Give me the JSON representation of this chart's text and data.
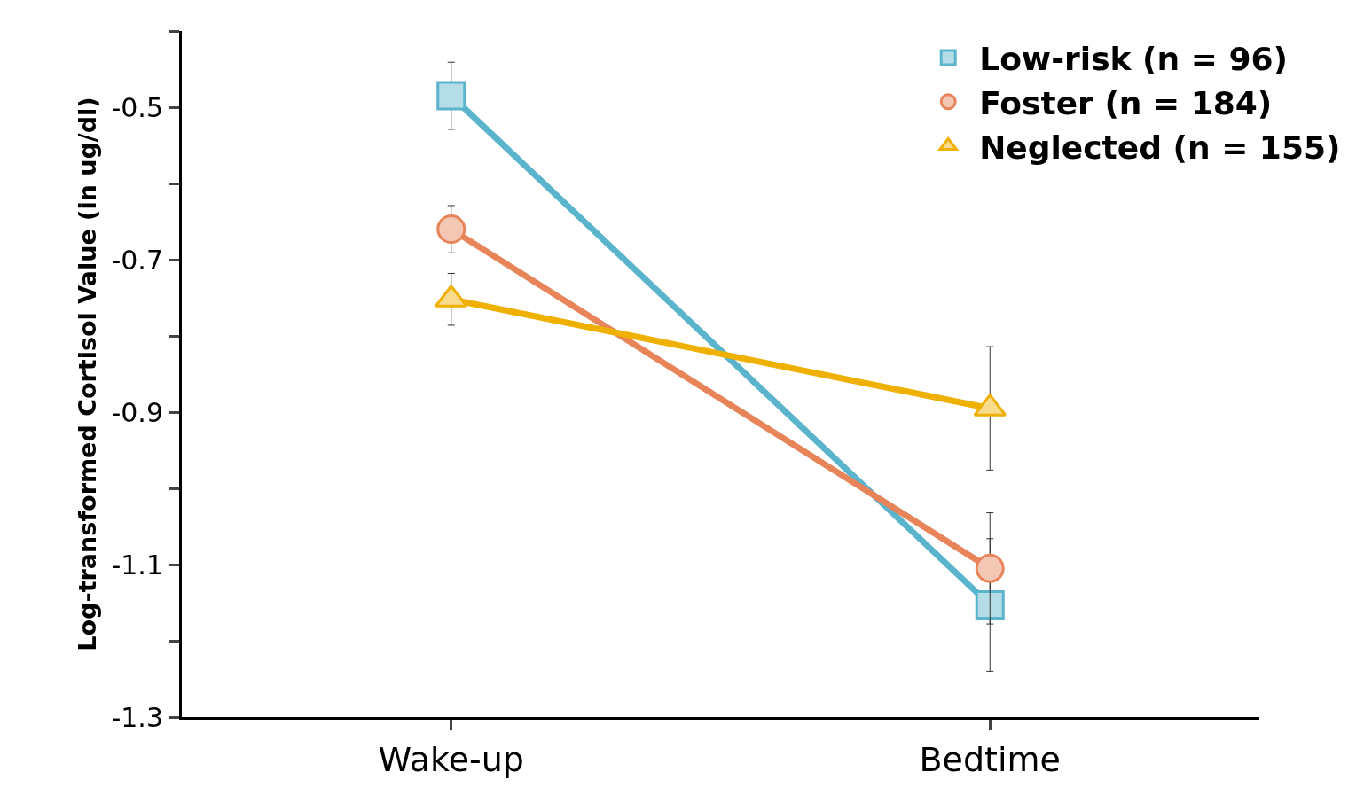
{
  "chart_data": {
    "type": "line",
    "ylabel": "Log-transformed Cortisol Value (in ug/dl)",
    "categories": [
      "Wake-up",
      "Bedtime"
    ],
    "series": [
      {
        "name": "Low-risk (n = 96)",
        "color": "#5ab4cc",
        "marker": "square",
        "values": [
          -0.485,
          -1.153
        ],
        "errors": [
          0.044,
          0.087
        ]
      },
      {
        "name": "Foster (n = 184)",
        "color": "#e8845a",
        "marker": "circle",
        "values": [
          -0.66,
          -1.105
        ],
        "errors": [
          0.031,
          0.073
        ]
      },
      {
        "name": "Neglected (n = 155)",
        "color": "#f0b000",
        "marker": "triangle",
        "values": [
          -0.752,
          -0.895
        ],
        "errors": [
          0.034,
          0.081
        ]
      }
    ],
    "ylim": [
      -1.3,
      -0.4
    ],
    "yticks": [
      {
        "value": -0.4,
        "label": null
      },
      -0.5,
      {
        "value": -0.6,
        "label": null
      },
      -0.7,
      {
        "value": -0.8,
        "label": null
      },
      -0.9,
      {
        "value": -1.0,
        "label": null
      },
      -1.1,
      {
        "value": -1.2,
        "label": null
      },
      -1.3
    ],
    "legend": "top right",
    "line_style": "solid"
  }
}
